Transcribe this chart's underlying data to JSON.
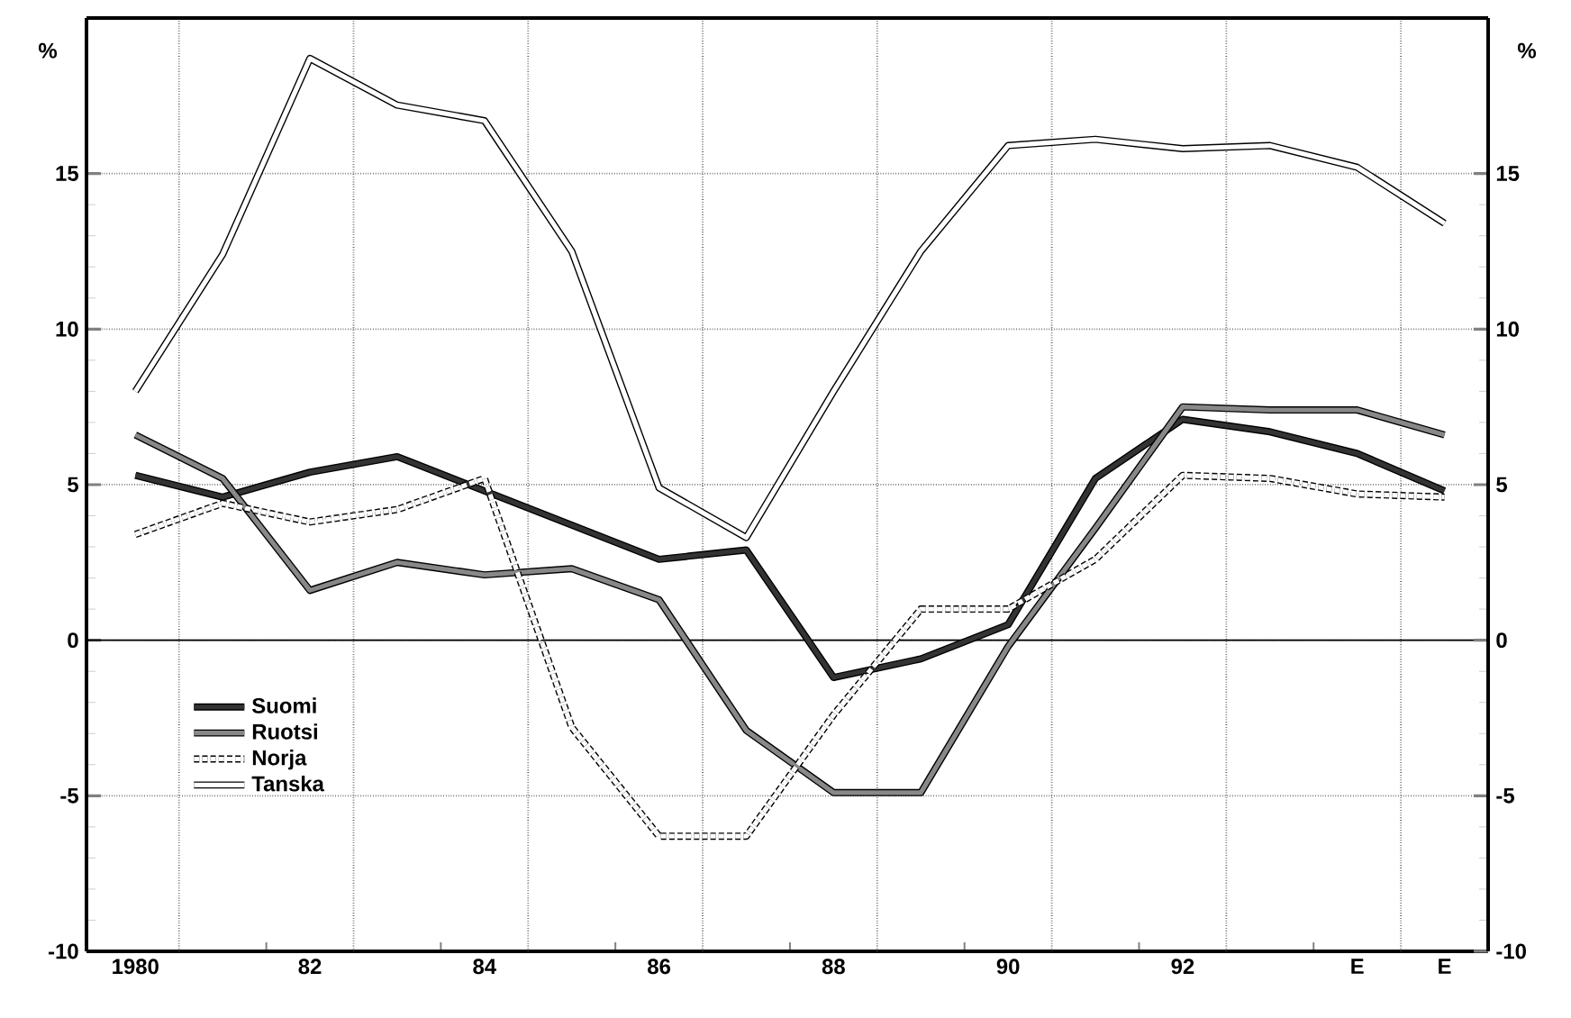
{
  "chart_data": {
    "type": "line",
    "categories": [
      "1980",
      null,
      "82",
      null,
      "84",
      null,
      "86",
      null,
      "88",
      null,
      "90",
      null,
      "92",
      null,
      "E",
      "E"
    ],
    "series": [
      {
        "name": "Suomi",
        "color": "#333333",
        "values": [
          5.3,
          4.6,
          5.4,
          5.9,
          4.8,
          3.7,
          2.6,
          2.9,
          -1.2,
          -0.6,
          0.5,
          5.2,
          7.1,
          6.7,
          6.0,
          4.8
        ]
      },
      {
        "name": "Ruotsi",
        "color": "#888888",
        "values": [
          6.6,
          5.2,
          1.6,
          2.5,
          2.1,
          2.3,
          1.3,
          -2.9,
          -4.9,
          -4.9,
          -0.2,
          3.6,
          7.5,
          7.4,
          7.4,
          6.6
        ]
      },
      {
        "name": "Norja",
        "color": "#ffffff",
        "line_style": "dashed",
        "values": [
          3.4,
          4.4,
          3.8,
          4.2,
          5.2,
          -2.8,
          -6.3,
          -6.3,
          -2.4,
          1.0,
          1.0,
          2.6,
          5.3,
          5.2,
          4.7,
          4.6
        ]
      },
      {
        "name": "Tanska",
        "color": "#ffffff",
        "values": [
          8.0,
          12.4,
          18.7,
          17.2,
          16.7,
          12.5,
          4.9,
          3.3,
          8.0,
          12.5,
          15.9,
          16.1,
          15.8,
          15.9,
          15.2,
          13.4
        ]
      }
    ],
    "annotations": [
      "%",
      "%"
    ],
    "ylim": [
      -10,
      20
    ],
    "yticks": [
      -10,
      -5,
      0,
      5,
      10,
      15
    ],
    "y2lim": [
      -10,
      20
    ],
    "y2ticks": [
      -10,
      -5,
      0,
      5,
      10,
      15
    ],
    "ref_lines": [
      {
        "axis": "y",
        "value": 0,
        "color": "#000000"
      }
    ],
    "grid": true,
    "legend": "bottom left",
    "line_style": "solid",
    "marker": "none"
  }
}
